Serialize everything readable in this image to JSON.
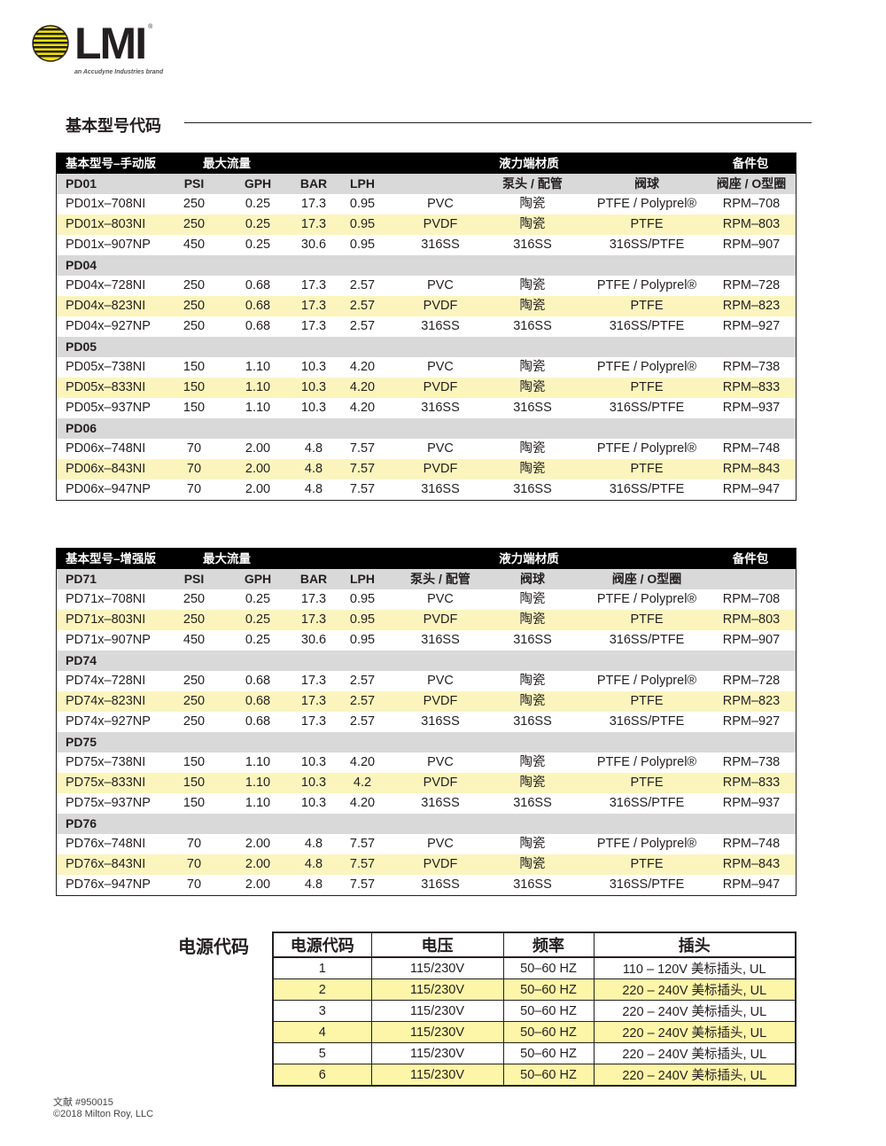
{
  "logo": {
    "text": "LMI",
    "tagline": "an Accudyne Industries brand",
    "colors": {
      "yellow": "#f5e000",
      "black": "#231f20"
    }
  },
  "section_title": "基本型号代码",
  "tables": [
    {
      "title": [
        "基本型号–手动版",
        "最大流量",
        "液力端材质",
        "备件包"
      ],
      "groups": [
        {
          "header": [
            "PD01",
            "PSI",
            "GPH",
            "BAR",
            "LPH",
            "",
            "泵头 / 配管",
            "阀球",
            "阀座 / O型圈"
          ],
          "rows": [
            [
              "PD01x–708NI",
              "250",
              "0.25",
              "17.3",
              "0.95",
              "PVC",
              "陶瓷",
              "PTFE / Polyprel®",
              "RPM–708"
            ],
            [
              "PD01x–803NI",
              "250",
              "0.25",
              "17.3",
              "0.95",
              "PVDF",
              "陶瓷",
              "PTFE",
              "RPM–803"
            ],
            [
              "PD01x–907NP",
              "450",
              "0.25",
              "30.6",
              "0.95",
              "316SS",
              "316SS",
              "316SS/PTFE",
              "RPM–907"
            ]
          ]
        },
        {
          "header": [
            "PD04"
          ],
          "rows": [
            [
              "PD04x–728NI",
              "250",
              "0.68",
              "17.3",
              "2.57",
              "PVC",
              "陶瓷",
              "PTFE / Polyprel®",
              "RPM–728"
            ],
            [
              "PD04x–823NI",
              "250",
              "0.68",
              "17.3",
              "2.57",
              "PVDF",
              "陶瓷",
              "PTFE",
              "RPM–823"
            ],
            [
              "PD04x–927NP",
              "250",
              "0.68",
              "17.3",
              "2.57",
              "316SS",
              "316SS",
              "316SS/PTFE",
              "RPM–927"
            ]
          ]
        },
        {
          "header": [
            "PD05"
          ],
          "rows": [
            [
              "PD05x–738NI",
              "150",
              "1.10",
              "10.3",
              "4.20",
              "PVC",
              "陶瓷",
              "PTFE / Polyprel®",
              "RPM–738"
            ],
            [
              "PD05x–833NI",
              "150",
              "1.10",
              "10.3",
              "4.20",
              "PVDF",
              "陶瓷",
              "PTFE",
              "RPM–833"
            ],
            [
              "PD05x–937NP",
              "150",
              "1.10",
              "10.3",
              "4.20",
              "316SS",
              "316SS",
              "316SS/PTFE",
              "RPM–937"
            ]
          ]
        },
        {
          "header": [
            "PD06"
          ],
          "rows": [
            [
              "PD06x–748NI",
              "70",
              "2.00",
              "4.8",
              "7.57",
              "PVC",
              "陶瓷",
              "PTFE / Polyprel®",
              "RPM–748"
            ],
            [
              "PD06x–843NI",
              "70",
              "2.00",
              "4.8",
              "7.57",
              "PVDF",
              "陶瓷",
              "PTFE",
              "RPM–843"
            ],
            [
              "PD06x–947NP",
              "70",
              "2.00",
              "4.8",
              "7.57",
              "316SS",
              "316SS",
              "316SS/PTFE",
              "RPM–947"
            ]
          ]
        }
      ]
    },
    {
      "title": [
        "基本型号–增强版",
        "最大流量",
        "液力端材质",
        "备件包"
      ],
      "groups": [
        {
          "header": [
            "PD71",
            "PSI",
            "GPH",
            "BAR",
            "LPH",
            "泵头 / 配管",
            "阀球",
            "阀座 / O型圈",
            ""
          ],
          "rows": [
            [
              "PD71x–708NI",
              "250",
              "0.25",
              "17.3",
              "0.95",
              "PVC",
              "陶瓷",
              "PTFE / Polyprel®",
              "RPM–708"
            ],
            [
              "PD71x–803NI",
              "250",
              "0.25",
              "17.3",
              "0.95",
              "PVDF",
              "陶瓷",
              "PTFE",
              "RPM–803"
            ],
            [
              "PD71x–907NP",
              "450",
              "0.25",
              "30.6",
              "0.95",
              "316SS",
              "316SS",
              "316SS/PTFE",
              "RPM–907"
            ]
          ]
        },
        {
          "header": [
            "PD74"
          ],
          "rows": [
            [
              "PD74x–728NI",
              "250",
              "0.68",
              "17.3",
              "2.57",
              "PVC",
              "陶瓷",
              "PTFE / Polyprel®",
              "RPM–728"
            ],
            [
              "PD74x–823NI",
              "250",
              "0.68",
              "17.3",
              "2.57",
              "PVDF",
              "陶瓷",
              "PTFE",
              "RPM–823"
            ],
            [
              "PD74x–927NP",
              "250",
              "0.68",
              "17.3",
              "2.57",
              "316SS",
              "316SS",
              "316SS/PTFE",
              "RPM–927"
            ]
          ]
        },
        {
          "header": [
            "PD75"
          ],
          "rows": [
            [
              "PD75x–738NI",
              "150",
              "1.10",
              "10.3",
              "4.20",
              "PVC",
              "陶瓷",
              "PTFE / Polyprel®",
              "RPM–738"
            ],
            [
              "PD75x–833NI",
              "150",
              "1.10",
              "10.3",
              "4.2",
              "PVDF",
              "陶瓷",
              "PTFE",
              "RPM–833"
            ],
            [
              "PD75x–937NP",
              "150",
              "1.10",
              "10.3",
              "4.20",
              "316SS",
              "316SS",
              "316SS/PTFE",
              "RPM–937"
            ]
          ]
        },
        {
          "header": [
            "PD76"
          ],
          "rows": [
            [
              "PD76x–748NI",
              "70",
              "2.00",
              "4.8",
              "7.57",
              "PVC",
              "陶瓷",
              "PTFE / Polyprel®",
              "RPM–748"
            ],
            [
              "PD76x–843NI",
              "70",
              "2.00",
              "4.8",
              "7.57",
              "PVDF",
              "陶瓷",
              "PTFE",
              "RPM–843"
            ],
            [
              "PD76x–947NP",
              "70",
              "2.00",
              "4.8",
              "7.57",
              "316SS",
              "316SS",
              "316SS/PTFE",
              "RPM–947"
            ]
          ]
        }
      ]
    }
  ],
  "power": {
    "title": "电源代码",
    "headers": [
      "电源代码",
      "电压",
      "频率",
      "插头"
    ],
    "rows": [
      [
        "1",
        "115/230V",
        "50–60 HZ",
        "110 – 120V 美标插头, UL"
      ],
      [
        "2",
        "115/230V",
        "50–60 HZ",
        "220 – 240V 美标插头, UL"
      ],
      [
        "3",
        "115/230V",
        "50–60 HZ",
        "220 – 240V 美标插头, UL"
      ],
      [
        "4",
        "115/230V",
        "50–60 HZ",
        "220 – 240V 美标插头, UL"
      ],
      [
        "5",
        "115/230V",
        "50–60 HZ",
        "220 – 240V 美标插头, UL"
      ],
      [
        "6",
        "115/230V",
        "50–60 HZ",
        "220 – 240V 美标插头, UL"
      ]
    ]
  },
  "footer": {
    "doc": "文献 #950015",
    "copyright": "©2018 Milton Roy, LLC"
  }
}
